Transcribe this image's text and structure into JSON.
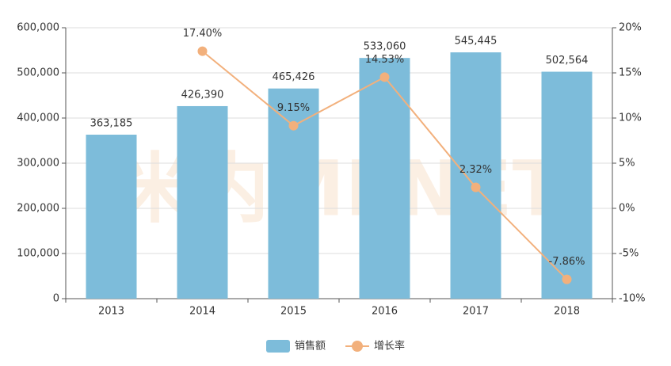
{
  "chart_data": {
    "type": "bar",
    "watermark": "米内MENET",
    "categories": [
      "2013",
      "2014",
      "2015",
      "2016",
      "2017",
      "2018"
    ],
    "series": [
      {
        "name": "销售额",
        "type": "bar",
        "color": "#7dbcda",
        "values": [
          363185,
          426390,
          465426,
          533060,
          545445,
          502564
        ],
        "value_labels": [
          "363,185",
          "426,390",
          "465,426",
          "533,060",
          "545,445",
          "502,564"
        ]
      },
      {
        "name": "增长率",
        "type": "line",
        "axis": "y2",
        "color": "#f2b07c",
        "values": [
          null,
          17.4,
          9.15,
          14.53,
          2.32,
          -7.86
        ],
        "value_labels": [
          null,
          "17.40%",
          "9.15%",
          "14.53%",
          "2.32%",
          "-7.86%"
        ]
      }
    ],
    "ylim": [
      0,
      600000
    ],
    "yticks": [
      0,
      {
        "value": 100000,
        "label": "100,000"
      },
      {
        "value": 200000,
        "label": "200,000"
      },
      {
        "value": 300000,
        "label": "300,000"
      },
      {
        "value": 400000,
        "label": "400,000"
      },
      {
        "value": 500000,
        "label": "500,000"
      },
      {
        "value": 600000,
        "label": "600,000"
      }
    ],
    "y2lim": [
      -10,
      20
    ],
    "y2ticks": [
      {
        "value": -10,
        "label": "-10%"
      },
      {
        "value": -5,
        "label": "-5%"
      },
      {
        "value": 0,
        "label": "0%"
      },
      {
        "value": 5,
        "label": "5%"
      },
      {
        "value": 10,
        "label": "10%"
      },
      {
        "value": 15,
        "label": "15%"
      },
      {
        "value": 20,
        "label": "20%"
      }
    ],
    "grid": true
  }
}
